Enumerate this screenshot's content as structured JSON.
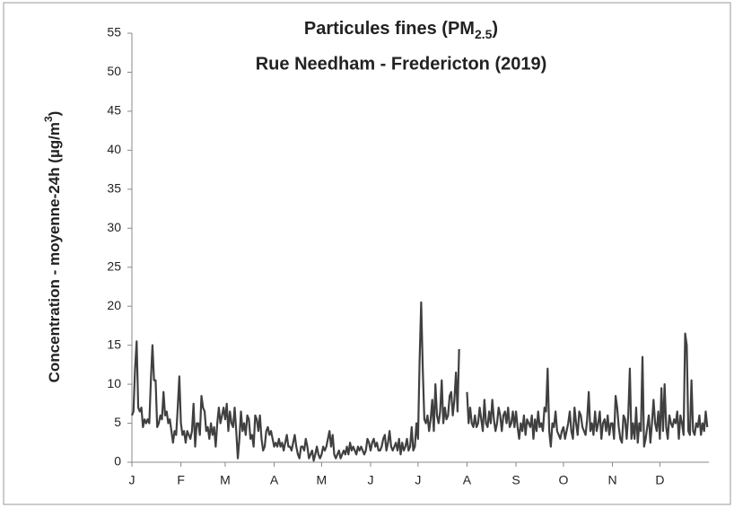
{
  "chart_data": {
    "type": "line",
    "title": [
      "Particules fines (PM",
      "2.5",
      ")"
    ],
    "subtitle": "Rue Needham - Fredericton (2019)",
    "ylabel": [
      "Concentration - moyenne-24h (µg/m",
      "3",
      ")"
    ],
    "ylim": [
      0,
      55
    ],
    "yticks": [
      0,
      5,
      10,
      15,
      20,
      25,
      30,
      35,
      40,
      45,
      50,
      55
    ],
    "color": "#404040",
    "categories": [
      "J",
      null,
      null,
      null,
      null,
      null,
      null,
      null,
      null,
      null,
      null,
      null,
      null,
      null,
      null,
      null,
      null,
      null,
      null,
      null,
      null,
      null,
      null,
      null,
      null,
      null,
      null,
      null,
      null,
      null,
      null,
      "F",
      null,
      null,
      null,
      null,
      null,
      null,
      null,
      null,
      null,
      null,
      null,
      null,
      null,
      null,
      null,
      null,
      null,
      null,
      null,
      null,
      null,
      null,
      null,
      null,
      null,
      null,
      null,
      "M",
      null,
      null,
      null,
      null,
      null,
      null,
      null,
      null,
      null,
      null,
      null,
      null,
      null,
      null,
      null,
      null,
      null,
      null,
      null,
      null,
      null,
      null,
      null,
      null,
      null,
      null,
      null,
      null,
      null,
      null,
      "A",
      null,
      null,
      null,
      null,
      null,
      null,
      null,
      null,
      null,
      null,
      null,
      null,
      null,
      null,
      null,
      null,
      null,
      null,
      null,
      null,
      null,
      null,
      null,
      null,
      null,
      null,
      null,
      null,
      null,
      "M",
      null,
      null,
      null,
      null,
      null,
      null,
      null,
      null,
      null,
      null,
      null,
      null,
      null,
      null,
      null,
      null,
      null,
      null,
      null,
      null,
      null,
      null,
      null,
      null,
      null,
      null,
      null,
      null,
      null,
      null,
      "J",
      null,
      null,
      null,
      null,
      null,
      null,
      null,
      null,
      null,
      null,
      null,
      null,
      null,
      null,
      null,
      null,
      null,
      null,
      null,
      null,
      null,
      null,
      null,
      null,
      null,
      null,
      null,
      null,
      null,
      "J",
      null,
      null,
      null,
      null,
      null,
      null,
      null,
      null,
      null,
      null,
      null,
      null,
      null,
      null,
      null,
      null,
      null,
      null,
      null,
      null,
      null,
      null,
      null,
      null,
      null,
      null,
      null,
      null,
      null,
      null,
      "A",
      null,
      null,
      null,
      null,
      null,
      null,
      null,
      null,
      null,
      null,
      null,
      null,
      null,
      null,
      null,
      null,
      null,
      null,
      null,
      null,
      null,
      null,
      null,
      null,
      null,
      null,
      null,
      null,
      null,
      null,
      "S",
      null,
      null,
      null,
      null,
      null,
      null,
      null,
      null,
      null,
      null,
      null,
      null,
      null,
      null,
      null,
      null,
      null,
      null,
      null,
      null,
      null,
      null,
      null,
      null,
      null,
      null,
      null,
      null,
      null,
      "O",
      null,
      null,
      null,
      null,
      null,
      null,
      null,
      null,
      null,
      null,
      null,
      null,
      null,
      null,
      null,
      null,
      null,
      null,
      null,
      null,
      null,
      null,
      null,
      null,
      null,
      null,
      null,
      null,
      null,
      null,
      "N",
      null,
      null,
      null,
      null,
      null,
      null,
      null,
      null,
      null,
      null,
      null,
      null,
      null,
      null,
      null,
      null,
      null,
      null,
      null,
      null,
      null,
      null,
      null,
      null,
      null,
      null,
      null,
      null,
      null,
      "D",
      null,
      null,
      null,
      null,
      null,
      null,
      null,
      null,
      null,
      null,
      null,
      null,
      null,
      null,
      null,
      null,
      null,
      null,
      null,
      null,
      null,
      null,
      null,
      null,
      null,
      null,
      null,
      null,
      null,
      null
    ],
    "values": [
      6,
      6.5,
      12,
      15.5,
      7,
      6.5,
      7,
      4.5,
      5.5,
      5,
      5.5,
      5,
      10.5,
      15,
      10.5,
      10.5,
      4.5,
      5,
      6,
      5.5,
      9,
      6,
      6.5,
      5,
      5.5,
      4,
      2.5,
      4,
      3.5,
      7,
      11,
      5,
      3.5,
      4,
      2.5,
      4,
      3.5,
      3,
      4,
      7.5,
      2,
      5,
      5,
      3.5,
      8.5,
      7,
      6.5,
      4,
      4.5,
      3,
      5,
      3.5,
      4.5,
      2,
      5,
      7,
      5,
      6,
      7,
      5.5,
      7.5,
      4,
      6.5,
      5,
      4.5,
      7,
      4,
      0.5,
      3,
      6.5,
      4,
      5,
      3.5,
      6,
      5.5,
      3,
      3.5,
      2,
      6,
      5.5,
      4,
      6,
      3,
      1.5,
      2,
      4,
      4.5,
      3.5,
      4,
      3,
      2,
      2.5,
      2,
      3,
      2,
      2.5,
      1.5,
      2.5,
      3.5,
      2,
      2,
      1.5,
      2.5,
      3.5,
      2,
      1,
      0.5,
      2,
      2,
      1.5,
      3,
      2,
      0.5,
      1,
      1.5,
      0.2,
      1,
      2,
      1,
      0.5,
      1,
      2,
      1.5,
      2,
      3,
      4,
      2,
      3.5,
      1,
      0.5,
      1,
      1.5,
      0.5,
      1,
      1.5,
      1,
      2,
      1,
      2.5,
      1.5,
      2,
      1.5,
      1,
      2,
      1.5,
      2,
      1.5,
      1,
      1.5,
      3,
      2.5,
      1.5,
      2.5,
      3,
      2,
      2.5,
      1.5,
      1.5,
      2,
      3,
      3.5,
      1.5,
      2.5,
      4,
      2,
      1.5,
      2,
      2.5,
      1.5,
      3,
      1,
      2.5,
      1.5,
      2,
      3,
      1.5,
      2,
      4.5,
      1.5,
      2,
      5,
      3,
      13,
      20.5,
      12,
      5.5,
      5,
      6,
      4,
      5.5,
      8,
      4,
      10,
      6,
      5,
      6.5,
      10.5,
      5,
      7,
      5.5,
      6,
      8.5,
      9,
      6,
      8,
      11.5,
      6.5,
      14.5,
      null,
      null,
      null,
      null,
      9,
      5,
      7,
      5,
      4.5,
      6,
      4.5,
      5,
      7,
      5.5,
      4,
      8,
      5,
      4.5,
      6.5,
      5,
      8,
      5.5,
      4,
      5,
      7,
      6,
      4,
      6,
      6.5,
      5,
      7,
      4.5,
      5,
      6.5,
      4.5,
      6.5,
      4.5,
      3,
      5,
      4,
      6,
      3.5,
      5.5,
      5,
      4.5,
      6,
      3,
      5.5,
      4,
      6.5,
      4.5,
      5,
      4,
      7,
      6.5,
      12,
      4,
      2,
      5,
      4.5,
      6.5,
      4,
      3.5,
      3,
      4,
      4.5,
      3,
      4,
      5,
      6.5,
      4,
      3,
      7,
      5,
      3.5,
      6.5,
      6,
      4.5,
      4,
      3.5,
      5.5,
      9,
      4,
      5,
      3.5,
      6.5,
      4,
      5,
      6.5,
      3,
      5,
      5.5,
      4,
      6,
      3.5,
      5,
      5,
      3,
      8.5,
      7,
      4.5,
      3,
      2.5,
      6,
      5.5,
      3,
      6,
      12,
      3,
      5,
      3,
      7,
      2.5,
      5,
      4,
      13.5,
      2,
      3,
      4.5,
      6,
      2.5,
      5,
      8,
      5,
      4,
      6.5,
      3,
      9.5,
      4,
      10,
      4.5,
      3,
      6,
      5,
      4.5,
      5.5,
      5,
      6.5,
      3,
      6,
      5,
      3.5,
      16.5,
      15,
      4,
      3.5,
      10.5,
      4,
      3.5,
      5,
      4.5,
      6,
      3.5,
      5,
      4,
      6.5,
      4.5
    ]
  }
}
